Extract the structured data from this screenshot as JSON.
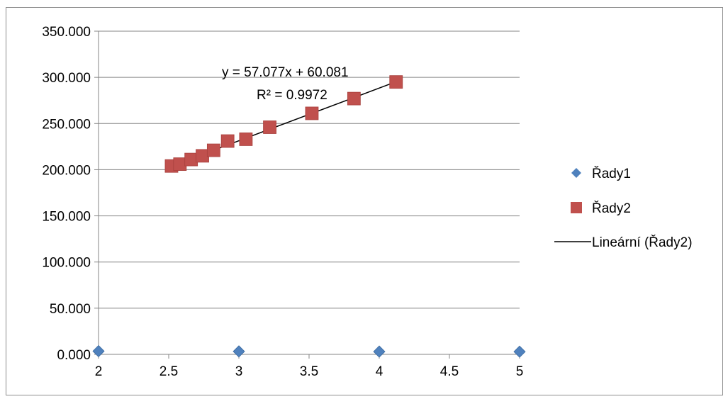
{
  "chart_data": {
    "type": "scatter",
    "title": "",
    "xlabel": "",
    "ylabel": "",
    "xlim": [
      2,
      5
    ],
    "ylim": [
      0,
      350
    ],
    "x_ticks": [
      2,
      2.5,
      3,
      3.5,
      4,
      4.5,
      5
    ],
    "x_tick_labels": [
      "2",
      "2.5",
      "3",
      "3.5",
      "4",
      "4.5",
      "5"
    ],
    "y_ticks": [
      0,
      50,
      100,
      150,
      200,
      250,
      300,
      350
    ],
    "y_tick_labels": [
      "0.000",
      "50.000",
      "100.000",
      "150.000",
      "200.000",
      "250.000",
      "300.000",
      "350.000"
    ],
    "grid": "horizontal",
    "legend_position": "right",
    "series": [
      {
        "name": "Řady1",
        "marker": "diamond",
        "color": "#4f81bd",
        "points": [
          [
            2,
            3.5
          ],
          [
            3,
            3.2
          ],
          [
            4,
            3.0
          ],
          [
            5,
            2.9
          ]
        ]
      },
      {
        "name": "Řady2",
        "marker": "square",
        "color": "#c0504d",
        "points": [
          [
            2.52,
            204
          ],
          [
            2.58,
            206
          ],
          [
            2.66,
            211
          ],
          [
            2.74,
            215
          ],
          [
            2.82,
            221
          ],
          [
            2.92,
            231
          ],
          [
            3.05,
            233
          ],
          [
            3.22,
            246
          ],
          [
            3.52,
            261
          ],
          [
            3.82,
            277
          ],
          [
            4.12,
            295
          ]
        ]
      }
    ],
    "trendline": {
      "name": "Lineární (Řady2)",
      "color": "#000000",
      "slope": 57.077,
      "intercept": 60.081,
      "x_range": [
        2.52,
        4.12
      ],
      "equation": "y = 57.077x + 60.081",
      "r_squared": "R² = 0.9972"
    }
  }
}
